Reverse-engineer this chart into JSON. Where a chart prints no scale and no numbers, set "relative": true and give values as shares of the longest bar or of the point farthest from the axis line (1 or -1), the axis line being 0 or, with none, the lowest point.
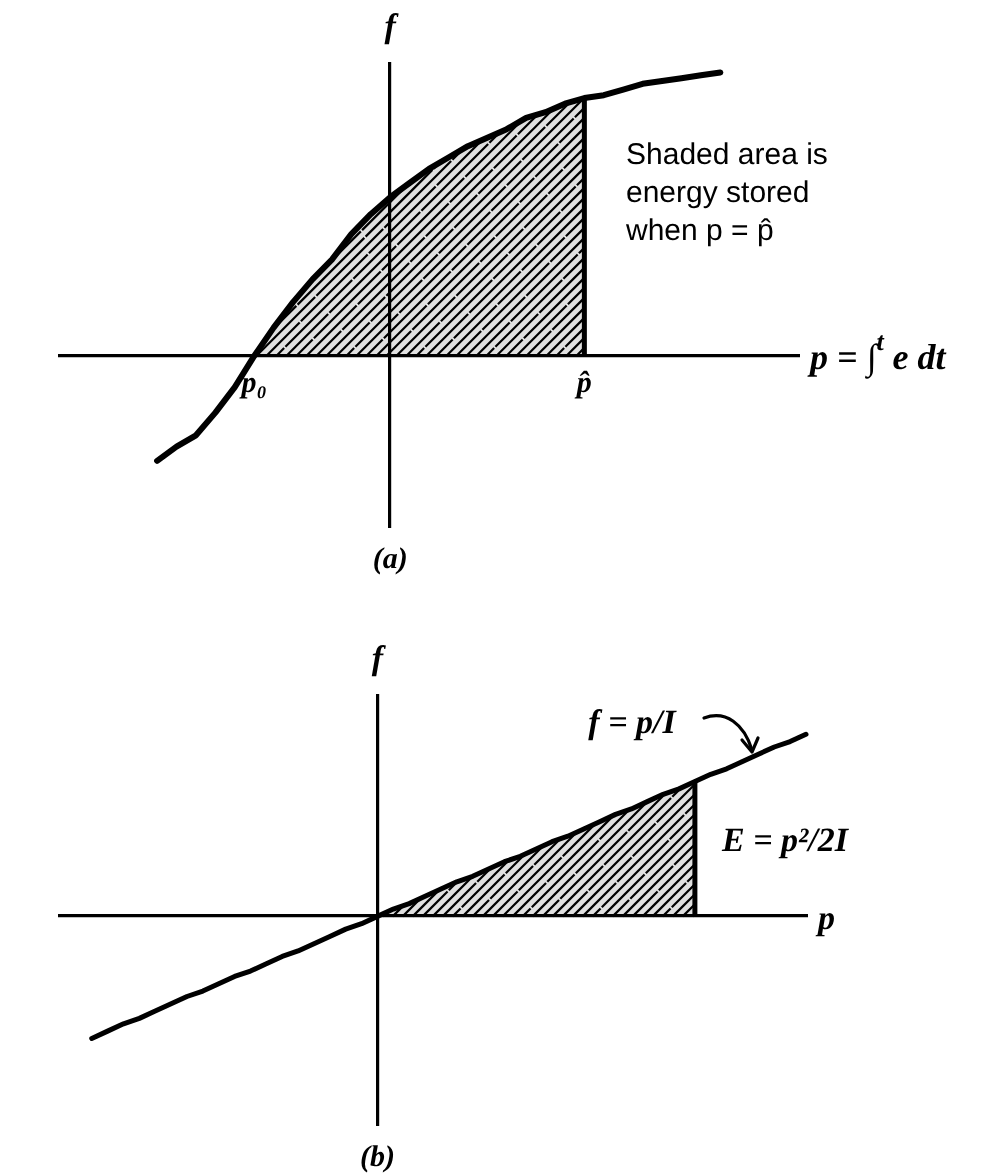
{
  "chart_data": [
    {
      "type": "line",
      "title": "(a)",
      "xlabel": "p = ∫$^{t}$ e dt",
      "ylabel": "f",
      "relative": true,
      "categories": [
        null,
        null,
        null,
        null,
        null,
        null,
        null,
        null,
        null,
        null,
        "p₀",
        null,
        null,
        null,
        null,
        null,
        null,
        null,
        null,
        null,
        null,
        null,
        null,
        null,
        null,
        null,
        null,
        "p̂",
        null,
        null,
        null,
        null,
        null,
        null,
        null,
        null,
        null,
        null,
        null
      ],
      "series": [
        {
          "color": "#000000",
          "values": [
            null,
            null,
            null,
            null,
            null,
            -0.37,
            -0.32,
            -0.28,
            -0.2,
            -0.11,
            0,
            0.1,
            0.19,
            0.27,
            0.34,
            0.43,
            0.5,
            0.56,
            0.61,
            0.66,
            0.7,
            0.74,
            0.77,
            0.8,
            0.84,
            0.86,
            0.89,
            0.91,
            0.92,
            0.94,
            0.96,
            0.97,
            0.98,
            0.99,
            1,
            null,
            null,
            null,
            null
          ]
        },
        {
          "type": "area",
          "color": "#000000",
          "values": [
            null,
            null,
            null,
            null,
            null,
            null,
            null,
            null,
            null,
            null,
            0,
            0.1,
            0.19,
            0.27,
            0.34,
            0.43,
            0.5,
            0.56,
            0.61,
            0.66,
            0.7,
            0.74,
            0.77,
            0.8,
            0.84,
            0.86,
            0.89,
            0.91,
            null,
            null,
            null,
            null,
            null,
            null,
            null,
            null,
            null,
            null,
            null
          ]
        }
      ],
      "annotations": [
        "Shaded area is energy stored when p = p̂"
      ]
    },
    {
      "type": "line",
      "title": "(b)",
      "xlabel": "p",
      "ylabel": "f",
      "relative": true,
      "categories": [
        null,
        null,
        null,
        null,
        null,
        null,
        null,
        null,
        null,
        null,
        null,
        null,
        null,
        null,
        null,
        null,
        null,
        null,
        null,
        null,
        null,
        null,
        null,
        null,
        null,
        null,
        null,
        null,
        null,
        null,
        null,
        null,
        null,
        null,
        null,
        null,
        null,
        null,
        null,
        null,
        null,
        null,
        null,
        null,
        null,
        null,
        null,
        null
      ],
      "series": [
        {
          "color": "#000000",
          "values": [
            null,
            null,
            -0.67,
            -0.63,
            -0.59,
            -0.56,
            -0.52,
            -0.48,
            -0.44,
            -0.41,
            -0.37,
            -0.33,
            -0.3,
            -0.26,
            -0.22,
            -0.19,
            -0.15,
            -0.11,
            -0.07,
            -0.04,
            0,
            0.04,
            0.07,
            0.11,
            0.15,
            0.19,
            0.22,
            0.26,
            0.3,
            0.33,
            0.37,
            0.41,
            0.44,
            0.48,
            0.52,
            0.56,
            0.59,
            0.63,
            0.67,
            0.7,
            0.74,
            0.78,
            0.81,
            0.85,
            0.89,
            0.93,
            0.96,
            1
          ]
        },
        {
          "type": "area",
          "color": "#000000",
          "values": [
            null,
            null,
            null,
            null,
            null,
            null,
            null,
            null,
            null,
            null,
            null,
            null,
            null,
            null,
            null,
            null,
            null,
            null,
            null,
            null,
            0,
            0.04,
            0.07,
            0.11,
            0.15,
            0.19,
            0.22,
            0.26,
            0.3,
            0.33,
            0.37,
            0.41,
            0.44,
            0.48,
            0.52,
            0.56,
            0.59,
            0.63,
            0.67,
            0.7,
            0.74,
            null,
            null,
            null,
            null,
            null,
            null,
            null
          ]
        }
      ],
      "annotations": [
        "f = p/I",
        "E = p²/2I"
      ]
    }
  ]
}
